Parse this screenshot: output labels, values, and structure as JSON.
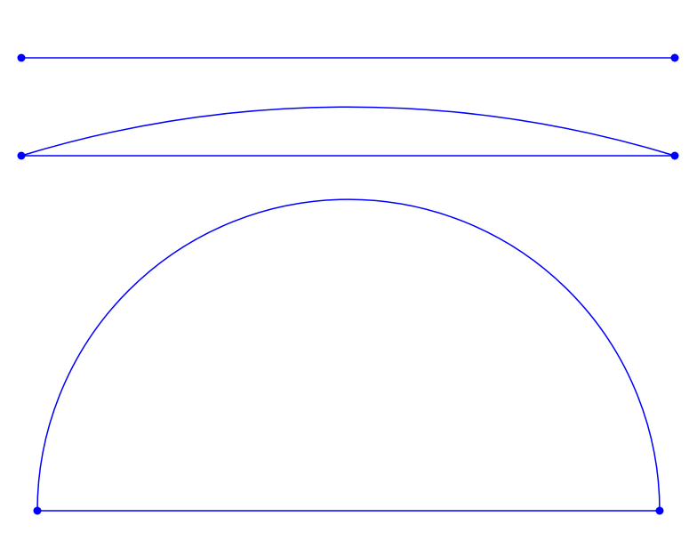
{
  "diagram": {
    "stroke_color": "#0000ff",
    "point_color": "#0000ff",
    "figures": [
      {
        "kind": "segment",
        "label": ""
      },
      {
        "kind": "circular-segment",
        "label": ""
      },
      {
        "kind": "semicircle",
        "label": ""
      }
    ]
  }
}
